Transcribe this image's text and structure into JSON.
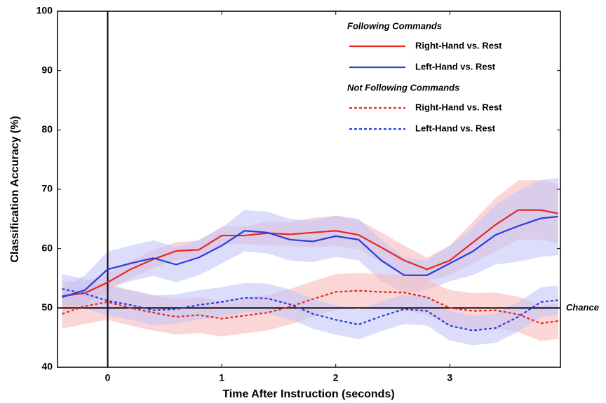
{
  "chart_data": {
    "type": "line",
    "x_label": "Time After Instruction (seconds)",
    "y_label": "Classification Accuracy (%)",
    "x": [
      -0.4,
      -0.2,
      0,
      0.2,
      0.4,
      0.6,
      0.8,
      1.0,
      1.2,
      1.4,
      1.6,
      1.8,
      2.0,
      2.2,
      2.4,
      2.6,
      2.8,
      3.0,
      3.2,
      3.4,
      3.6,
      3.8,
      3.95
    ],
    "xlim": [
      -0.44,
      3.97
    ],
    "xticks": [
      0,
      1,
      2,
      3
    ],
    "ylim": [
      40,
      100
    ],
    "yticks": [
      40,
      50,
      60,
      70,
      80,
      90,
      100
    ],
    "legend_groups": [
      "Following Commands",
      "Not Following Commands"
    ],
    "legend_position": "upper right",
    "series": [
      {
        "name": "Right-Hand vs. Rest",
        "group": 0,
        "color": "#e8281e",
        "band_color": "#f6baba",
        "dashed": false,
        "values": [
          52,
          52.5,
          54.3,
          56.5,
          58.2,
          59.6,
          59.8,
          62.2,
          62.2,
          62.6,
          62.4,
          62.7,
          63,
          62.3,
          60.2,
          58,
          56.5,
          58,
          61,
          64,
          66.5,
          66.5,
          65.9
        ],
        "lower": [
          49.5,
          50.5,
          52.8,
          55,
          56.7,
          58.1,
          58.3,
          60.7,
          60.7,
          60.6,
          60.4,
          60.2,
          60.5,
          59.8,
          57.7,
          55.5,
          54.5,
          55.5,
          57.5,
          59.5,
          61.5,
          61.5,
          60.9
        ],
        "upper": [
          54.5,
          54.5,
          55.8,
          58,
          59.7,
          61.1,
          61.3,
          63.7,
          63.7,
          64.6,
          64.4,
          65.2,
          65.5,
          64.8,
          62.7,
          60.5,
          58.5,
          60.5,
          64.5,
          68.5,
          71.5,
          71.5,
          70.9
        ]
      },
      {
        "name": "Left-Hand vs. Rest",
        "group": 0,
        "color": "#2a3ce0",
        "band_color": "#c4c6f8",
        "dashed": false,
        "values": [
          51.8,
          53,
          56.5,
          57.5,
          58.4,
          57.3,
          58.5,
          60.5,
          63,
          62.7,
          61.5,
          61.2,
          62.1,
          61.5,
          58,
          55.5,
          55.5,
          57.5,
          59.5,
          62.3,
          63.8,
          65.1,
          65.4
        ],
        "lower": [
          50.3,
          50.5,
          53.5,
          54.5,
          55.4,
          54.3,
          55.5,
          57.5,
          59.5,
          59.2,
          58,
          57.7,
          58.6,
          58,
          54.5,
          52.5,
          53,
          54.5,
          55.5,
          57.3,
          57.8,
          58.6,
          58.9
        ],
        "upper": [
          53.3,
          55.5,
          59.5,
          60.5,
          61.4,
          60.3,
          61.5,
          63.5,
          66.5,
          66.2,
          65,
          64.7,
          65.6,
          65,
          61.5,
          58.5,
          58,
          60.5,
          63.5,
          67.3,
          69.8,
          71.6,
          71.9
        ]
      },
      {
        "name": "Right-Hand vs. Rest",
        "group": 1,
        "color": "#e8281e",
        "band_color": "#f6baba",
        "dashed": true,
        "values": [
          49,
          50.3,
          51,
          50,
          49.2,
          48.5,
          48.8,
          48.2,
          48.7,
          49.2,
          50.2,
          51.5,
          52.7,
          52.9,
          52.7,
          52.6,
          51.8,
          50,
          49.5,
          49.6,
          48.9,
          47.4,
          47.8
        ],
        "lower": [
          46.5,
          47.3,
          48,
          47,
          46.2,
          45.5,
          45.8,
          45.2,
          45.7,
          46.2,
          47.2,
          48.5,
          49.7,
          49.9,
          49.7,
          49.6,
          48.8,
          47,
          46.5,
          46.6,
          45.9,
          44.4,
          44.8
        ],
        "upper": [
          51.5,
          53.3,
          54,
          53,
          52.2,
          51.5,
          51.8,
          51.2,
          51.7,
          52.2,
          53.2,
          54.5,
          55.7,
          55.9,
          55.7,
          55.6,
          54.8,
          53,
          52.5,
          52.6,
          51.9,
          50.4,
          50.8
        ]
      },
      {
        "name": "Left-Hand vs. Rest",
        "group": 1,
        "color": "#2a3ce0",
        "band_color": "#c4c6f8",
        "dashed": true,
        "values": [
          53.2,
          52.4,
          51.2,
          50.5,
          49.6,
          49.8,
          50.5,
          51,
          51.7,
          51.6,
          50.6,
          49,
          48,
          47.2,
          48.6,
          49.8,
          49.5,
          47,
          46.2,
          46.6,
          48.5,
          51,
          51.3
        ],
        "lower": [
          50.7,
          49.9,
          48.7,
          48,
          47.1,
          47.3,
          48,
          48.5,
          49.2,
          49.1,
          48.1,
          46.5,
          45.5,
          44.7,
          46.1,
          47.3,
          47,
          44.5,
          43.7,
          44.1,
          46,
          48.5,
          48.8
        ],
        "upper": [
          55.7,
          54.9,
          53.7,
          53,
          52.1,
          52.3,
          53,
          53.5,
          54.2,
          54.1,
          53.1,
          51.5,
          50.5,
          49.7,
          51.1,
          52.3,
          52,
          49.5,
          48.7,
          49.1,
          51,
          53.5,
          53.8
        ]
      }
    ],
    "vline": {
      "x": 0
    },
    "hline": {
      "y": 50,
      "label": "Chance"
    }
  }
}
